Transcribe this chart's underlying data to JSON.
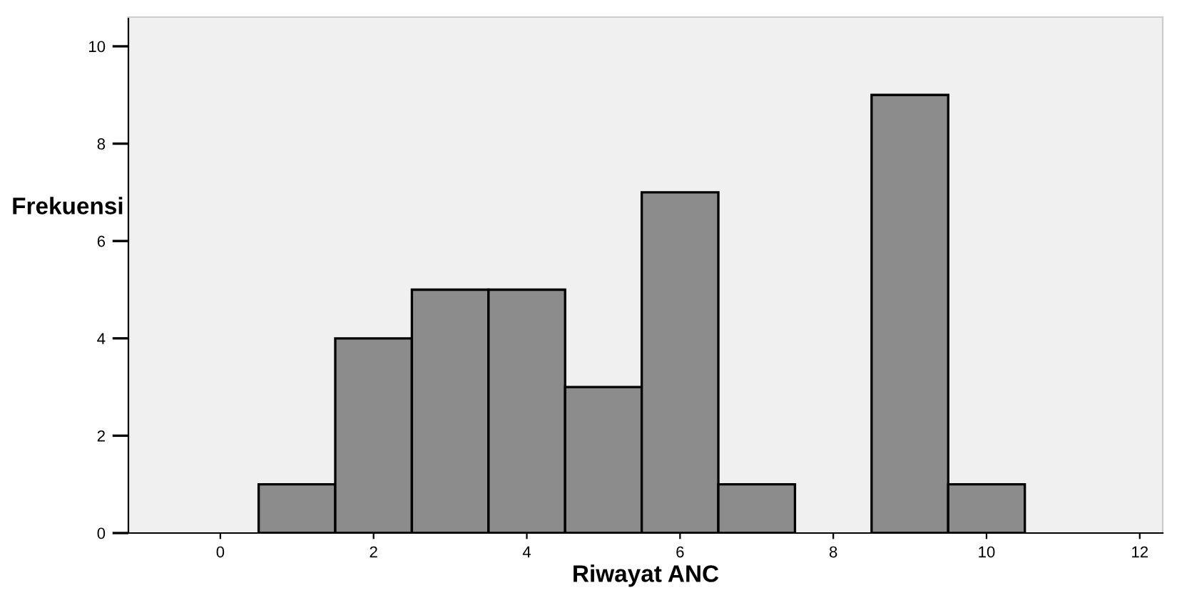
{
  "chart_data": {
    "type": "histogram",
    "xlabel": "Riwayat ANC",
    "ylabel": "Frekuensi",
    "bins": [
      0.5,
      1.5,
      2.5,
      3.5,
      4.5,
      5.5,
      6.5,
      7.5,
      8.5,
      9.5,
      10.5
    ],
    "values": [
      1,
      4,
      5,
      5,
      3,
      7,
      1,
      0,
      9,
      1
    ],
    "color": "#8c8c8c",
    "xlim": [
      -1.2,
      12.3
    ],
    "xticks": [
      0,
      2,
      4,
      6,
      8,
      10,
      12
    ],
    "ylim": [
      0,
      10.6
    ],
    "yticks": [
      0,
      2,
      4,
      6,
      8,
      10
    ],
    "grid": false
  }
}
